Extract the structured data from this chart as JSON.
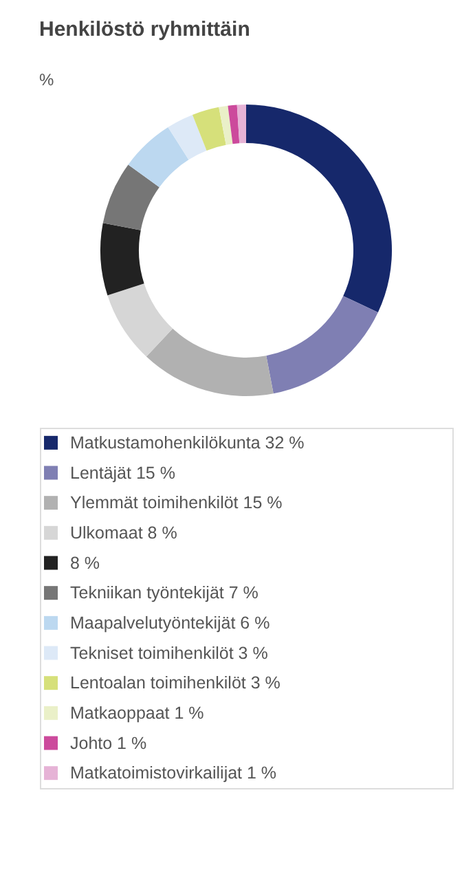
{
  "chart_data": {
    "type": "donut",
    "title": "Henkilöstö ryhmittäin",
    "subtitle": "%",
    "categories": [
      "Matkustamohenkilökunta",
      "Lentäjät",
      "Ylemmät toimihenkilöt",
      "Ulkomaat",
      null,
      "Tekniikan työntekijät",
      "Maapalvelutyöntekijät",
      "Tekniset toimihenkilöt",
      "Lentoalan toimihenkilöt",
      "Matkaoppaat",
      "Johto",
      "Matkatoimistovirkailijat"
    ],
    "values": [
      32,
      15,
      15,
      8,
      8,
      7,
      6,
      3,
      3,
      1,
      1,
      1
    ],
    "value_labels": [
      "32 %",
      "15 %",
      "15 %",
      "8 %",
      "8 %",
      "7 %",
      "6 %",
      "3 %",
      "3 %",
      "1 %",
      "1 %",
      "1 %"
    ],
    "colors": [
      "#16286b",
      "#7f7fb3",
      "#b1b1b1",
      "#d6d6d6",
      "#222222",
      "#767676",
      "#bcd8f0",
      "#dde9f7",
      "#d6e07a",
      "#eaf0c8",
      "#cc4a9c",
      "#e6b3d6"
    ],
    "legend": "bottom"
  }
}
